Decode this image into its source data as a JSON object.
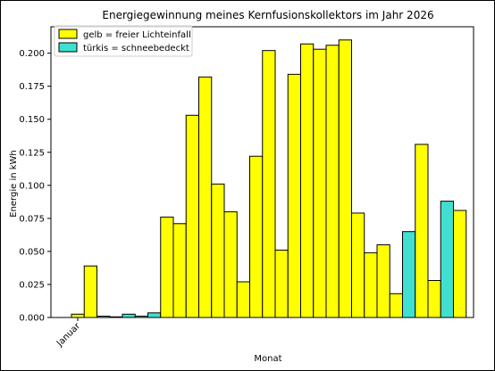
{
  "chart_data": {
    "type": "bar",
    "title": "Energiegewinnung meines Kernfusionskollektors im Jahr 2026",
    "xlabel": "Monat",
    "ylabel": "Energie in kWh",
    "ylim": [
      0,
      0.22
    ],
    "yticks": [
      "0.000",
      "0.025",
      "0.050",
      "0.075",
      "0.100",
      "0.125",
      "0.150",
      "0.175",
      "0.200"
    ],
    "xtick_label": "Januar",
    "grid": false,
    "legend_position": "top-left",
    "legend": [
      {
        "label": "gelb = freier Lichteinfall",
        "color": "#ffff00"
      },
      {
        "label": "türkis = schneebedeckt",
        "color": "#40e0d0"
      }
    ],
    "colors": {
      "free": "#ffff00",
      "snow": "#40e0d0",
      "edge": "#000000"
    },
    "bars": [
      {
        "value": 0.0025,
        "snow": false
      },
      {
        "value": 0.039,
        "snow": false
      },
      {
        "value": 0.001,
        "snow": true
      },
      {
        "value": 0.0005,
        "snow": true
      },
      {
        "value": 0.0025,
        "snow": true
      },
      {
        "value": 0.001,
        "snow": true
      },
      {
        "value": 0.0035,
        "snow": true
      },
      {
        "value": 0.076,
        "snow": false
      },
      {
        "value": 0.071,
        "snow": false
      },
      {
        "value": 0.153,
        "snow": false
      },
      {
        "value": 0.182,
        "snow": false
      },
      {
        "value": 0.101,
        "snow": false
      },
      {
        "value": 0.08,
        "snow": false
      },
      {
        "value": 0.027,
        "snow": false
      },
      {
        "value": 0.122,
        "snow": false
      },
      {
        "value": 0.202,
        "snow": false
      },
      {
        "value": 0.051,
        "snow": false
      },
      {
        "value": 0.184,
        "snow": false
      },
      {
        "value": 0.207,
        "snow": false
      },
      {
        "value": 0.203,
        "snow": false
      },
      {
        "value": 0.206,
        "snow": false
      },
      {
        "value": 0.21,
        "snow": false
      },
      {
        "value": 0.079,
        "snow": false
      },
      {
        "value": 0.049,
        "snow": false
      },
      {
        "value": 0.055,
        "snow": false
      },
      {
        "value": 0.018,
        "snow": false
      },
      {
        "value": 0.065,
        "snow": true
      },
      {
        "value": 0.131,
        "snow": false
      },
      {
        "value": 0.028,
        "snow": false
      },
      {
        "value": 0.088,
        "snow": true
      },
      {
        "value": 0.081,
        "snow": false
      }
    ]
  }
}
